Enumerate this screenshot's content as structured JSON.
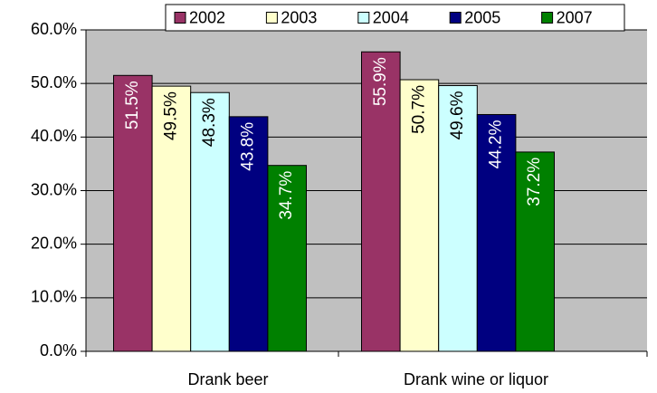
{
  "chart_data": {
    "type": "bar",
    "categories": [
      "Drank beer",
      "Drank wine or liquor"
    ],
    "series": [
      {
        "name": "2002",
        "color": "#993366",
        "values": [
          51.5,
          55.9
        ],
        "value_labels": [
          "51.5%",
          "55.9%"
        ]
      },
      {
        "name": "2003",
        "color": "#ffffcc",
        "values": [
          49.5,
          50.7
        ],
        "value_labels": [
          "49.5%",
          "50.7%"
        ]
      },
      {
        "name": "2004",
        "color": "#ccffff",
        "values": [
          48.3,
          49.6
        ],
        "value_labels": [
          "48.3%",
          "49.6%"
        ]
      },
      {
        "name": "2005",
        "color": "#000080",
        "values": [
          43.8,
          44.2
        ],
        "value_labels": [
          "43.8%",
          "44.2%"
        ]
      },
      {
        "name": "2007",
        "color": "#008000",
        "values": [
          34.7,
          37.2
        ],
        "value_labels": [
          "34.7%",
          "37.2%"
        ]
      }
    ],
    "ylim": [
      0,
      60
    ],
    "yticks": [
      {
        "value": 0,
        "label": "0.0%"
      },
      {
        "value": 10,
        "label": "10.0%"
      },
      {
        "value": 20,
        "label": "20.0%"
      },
      {
        "value": 30,
        "label": "30.0%"
      },
      {
        "value": 40,
        "label": "40.0%"
      },
      {
        "value": 50,
        "label": "50.0%"
      },
      {
        "value": 60,
        "label": "60.0%"
      }
    ],
    "grid": true,
    "legend": "top-right",
    "plot_background": "#c0c0c0"
  }
}
